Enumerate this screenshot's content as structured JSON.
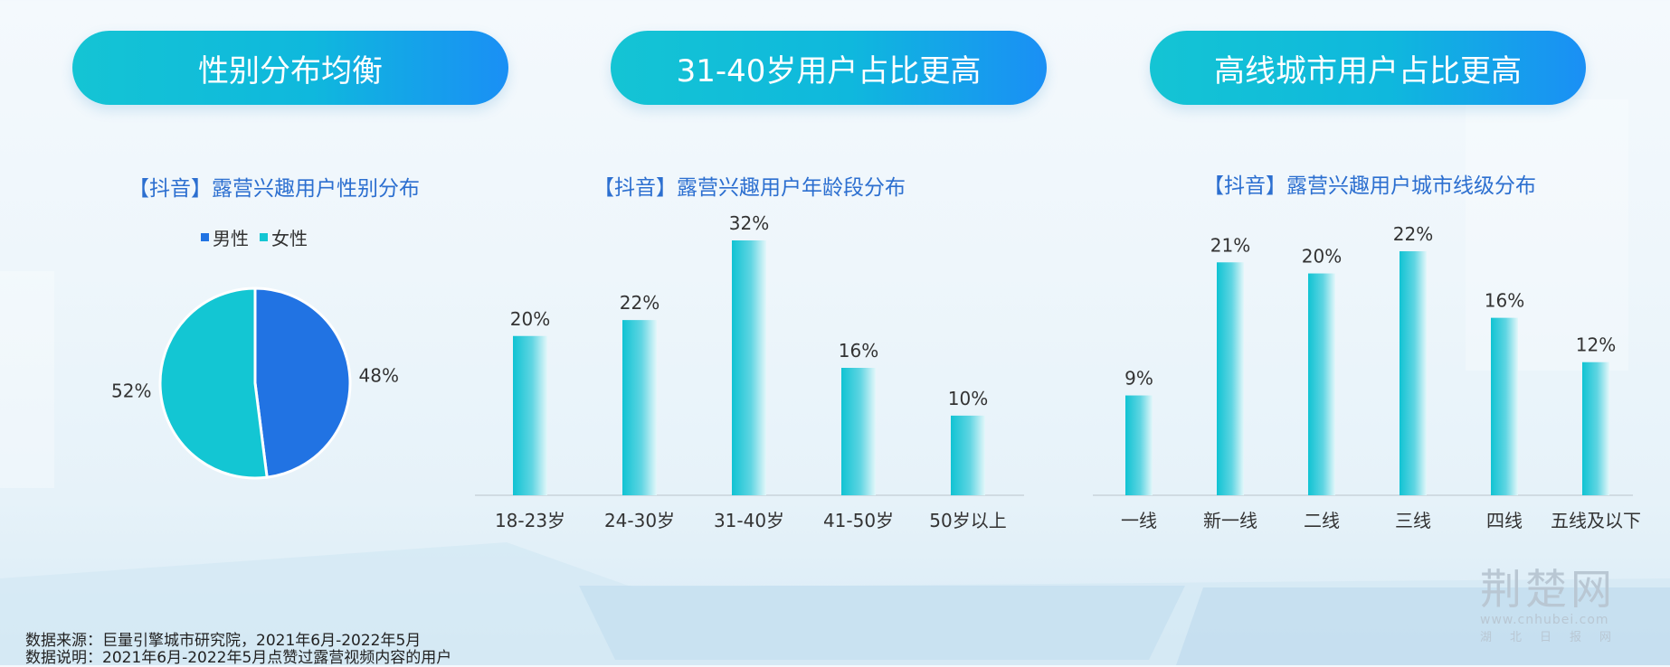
{
  "banners": [
    "性别分布均衡",
    "31-40岁用户占比更高",
    "高线城市用户占比更高"
  ],
  "colors": {
    "male": "#2173e3",
    "female": "#13c6d3",
    "title": "#2c6fd0"
  },
  "chart_data": [
    {
      "type": "pie",
      "title": "【抖音】露营兴趣用户性别分布",
      "categories": [
        "男性",
        "女性"
      ],
      "values": [
        48,
        52
      ],
      "labels": [
        "48%",
        "52%"
      ],
      "legend": "top"
    },
    {
      "type": "bar",
      "title": "【抖音】露营兴趣用户年龄段分布",
      "categories": [
        "18-23岁",
        "24-30岁",
        "31-40岁",
        "41-50岁",
        "50岁以上"
      ],
      "values": [
        20,
        22,
        32,
        16,
        10
      ],
      "labels": [
        "20%",
        "22%",
        "32%",
        "16%",
        "10%"
      ],
      "ylim": [
        0,
        32
      ]
    },
    {
      "type": "bar",
      "title": "【抖音】露营兴趣用户城市线级分布",
      "categories": [
        "一线",
        "新一线",
        "二线",
        "三线",
        "四线",
        "五线及以下"
      ],
      "values": [
        9,
        21,
        20,
        22,
        16,
        12
      ],
      "labels": [
        "9%",
        "21%",
        "20%",
        "22%",
        "16%",
        "12%"
      ],
      "ylim": [
        0,
        22
      ]
    }
  ],
  "notes": {
    "source": "数据来源：巨量引擎城市研究院，2021年6月-2022年5月",
    "description": "数据说明：2021年6月-2022年5月点赞过露营视频内容的用户"
  },
  "watermark": {
    "main": "荆楚网",
    "url": "www.cnhubei.com",
    "sub": "湖北日报网"
  }
}
